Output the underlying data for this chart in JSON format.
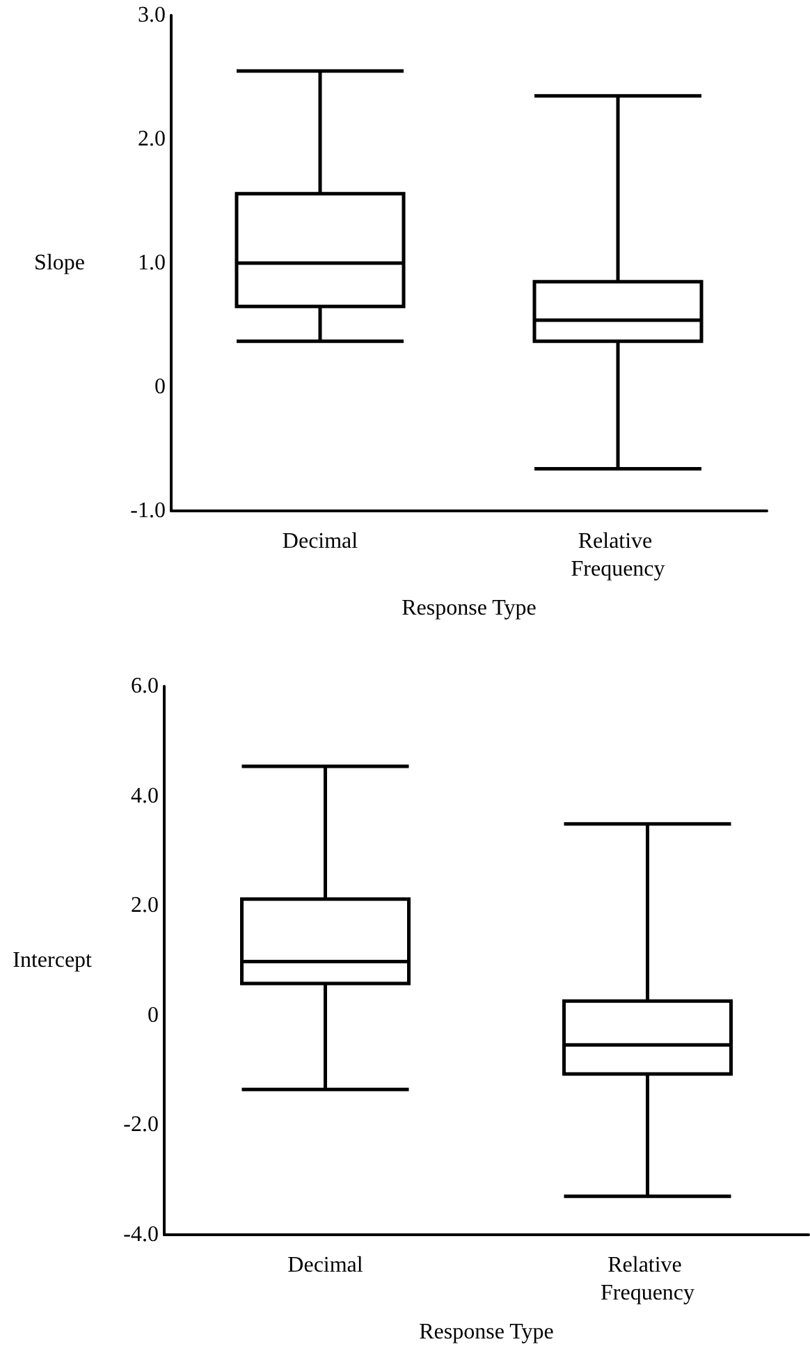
{
  "chart_data": [
    {
      "type": "box",
      "xlabel": "Response Type",
      "ylabel": "Slope",
      "categories": [
        "Decimal",
        "Relative Frequency"
      ],
      "ylim": [
        -1,
        3
      ],
      "yticks": [
        {
          "value": -1,
          "label": "-1.0"
        },
        0,
        {
          "value": 1,
          "label": "1.0"
        },
        {
          "value": 2,
          "label": "2.0"
        },
        {
          "value": 3,
          "label": "3.0"
        }
      ],
      "series": [
        {
          "color": "#000000",
          "boxes": [
            {
              "low": 0.37,
              "q1": 0.65,
              "median": 1.0,
              "q3": 1.56,
              "high": 2.55
            },
            {
              "low": -0.66,
              "q1": 0.37,
              "median": 0.54,
              "q3": 0.85,
              "high": 2.35
            }
          ]
        }
      ]
    },
    {
      "type": "box",
      "xlabel": "Response Type",
      "ylabel": "Intercept",
      "categories": [
        "Decimal",
        "Relative Frequency"
      ],
      "ylim": [
        -4,
        6
      ],
      "yticks": [
        {
          "value": -4,
          "label": "-4.0"
        },
        {
          "value": -2,
          "label": "-2.0"
        },
        0,
        {
          "value": 2,
          "label": "2.0"
        },
        {
          "value": 4,
          "label": "4.0"
        },
        {
          "value": 6,
          "label": "6.0"
        }
      ],
      "series": [
        {
          "color": "#000000",
          "boxes": [
            {
              "low": -1.35,
              "q1": 0.58,
              "median": 0.98,
              "q3": 2.12,
              "high": 4.54
            },
            {
              "low": -3.3,
              "q1": -1.07,
              "median": -0.54,
              "q3": 0.26,
              "high": 3.49
            }
          ]
        }
      ]
    }
  ]
}
